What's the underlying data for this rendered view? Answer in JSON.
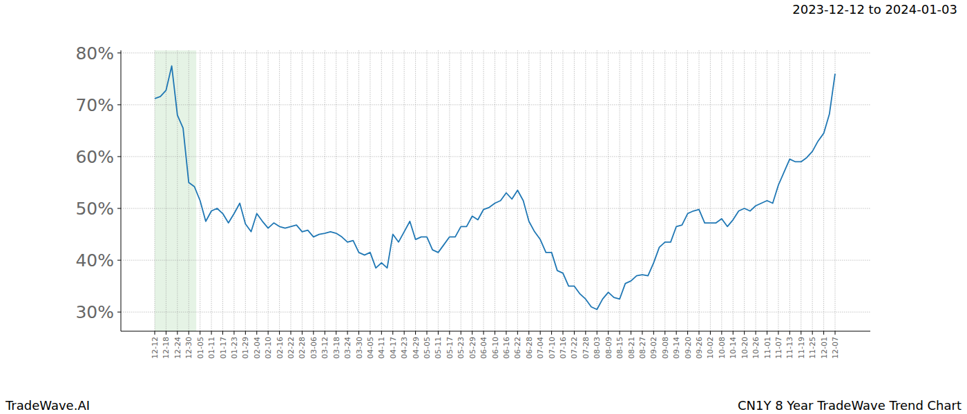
{
  "chart_data": {
    "type": "line",
    "title": "2023-12-12 to 2024-01-03",
    "footer_left": "TradeWave.AI",
    "footer_right": "CN1Y 8 Year TradeWave Trend Chart",
    "categories": [
      "12-12",
      null,
      "12-18",
      null,
      "12-24",
      null,
      "12-30",
      null,
      "01-05",
      null,
      "01-11",
      null,
      "01-17",
      null,
      "01-23",
      null,
      "01-29",
      null,
      "02-04",
      null,
      "02-10",
      null,
      "02-16",
      null,
      "02-22",
      null,
      "02-28",
      null,
      "03-06",
      null,
      "03-12",
      null,
      "03-18",
      null,
      "03-24",
      null,
      "03-30",
      null,
      "04-05",
      null,
      "04-11",
      null,
      "04-17",
      null,
      "04-23",
      null,
      "04-29",
      null,
      "05-05",
      null,
      "05-11",
      null,
      "05-17",
      null,
      "05-23",
      null,
      "05-29",
      null,
      "06-04",
      null,
      "06-10",
      null,
      "06-16",
      null,
      "06-22",
      null,
      "06-28",
      null,
      "07-04",
      null,
      "07-10",
      null,
      "07-16",
      null,
      "07-22",
      null,
      "07-28",
      null,
      "08-03",
      null,
      "08-09",
      null,
      "08-15",
      null,
      "08-21",
      null,
      "08-27",
      null,
      "09-02",
      null,
      "09-08",
      null,
      "09-14",
      null,
      "09-20",
      null,
      "09-26",
      null,
      "10-02",
      null,
      "10-08",
      null,
      "10-14",
      null,
      "10-20",
      null,
      "10-26",
      null,
      "11-01",
      null,
      "11-07",
      null,
      "11-13",
      null,
      "11-19",
      null,
      "11-25",
      null,
      "12-01",
      null,
      "12-07"
    ],
    "series": [
      {
        "name": "CN1Y",
        "color": "#1f77b4",
        "values": [
          71.2,
          71.6,
          72.8,
          77.5,
          68,
          65.5,
          55,
          54.2,
          51.5,
          47.5,
          49.5,
          50,
          49,
          47.2,
          49,
          51,
          47,
          45.5,
          49,
          47.5,
          46.2,
          47.2,
          46.5,
          46.2,
          46.5,
          46.8,
          45.5,
          45.8,
          44.5,
          45,
          45.2,
          45.5,
          45.2,
          44.5,
          43.5,
          43.8,
          41.5,
          41,
          41.5,
          38.5,
          39.5,
          38.5,
          45,
          43.5,
          45.5,
          47.5,
          44,
          44.5,
          44.5,
          42,
          41.5,
          43,
          44.5,
          44.5,
          46.5,
          46.5,
          48.5,
          47.8,
          49.8,
          50.2,
          51,
          51.5,
          53,
          51.8,
          53.5,
          51.5,
          47.5,
          45.5,
          44,
          41.5,
          41.5,
          38,
          37.5,
          35,
          35,
          33.5,
          32.5,
          31,
          30.5,
          32.5,
          33.8,
          32.8,
          32.5,
          35.5,
          36,
          37,
          37.2,
          37,
          39.5,
          42.5,
          43.5,
          43.5,
          46.5,
          46.8,
          49,
          49.5,
          49.8,
          47.2,
          47.2,
          47.2,
          48,
          46.5,
          47.8,
          49.5,
          50,
          49.5,
          50.5,
          51,
          51.5,
          51,
          54.5,
          57,
          59.5,
          59,
          59,
          59.8,
          61,
          63,
          64.5,
          68.2,
          76
        ]
      }
    ],
    "ylim": [
      26.3,
      80.5
    ],
    "yticks": [
      {
        "value": 30,
        "label": "30%"
      },
      {
        "value": 40,
        "label": "40%"
      },
      {
        "value": 50,
        "label": "50%"
      },
      {
        "value": 60,
        "label": "60%"
      },
      {
        "value": 70,
        "label": "70%"
      },
      {
        "value": 80,
        "label": "80%"
      }
    ],
    "shaded_span": [
      0,
      7.33
    ],
    "grid": true
  }
}
